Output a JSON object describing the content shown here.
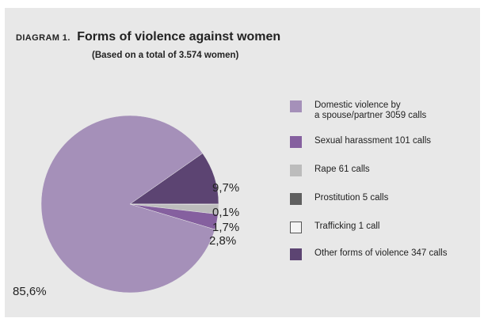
{
  "header": {
    "label": "DIAGRAM 1.",
    "title": "Forms of violence against women",
    "subtitle": "(Based on a total of 3.574 women)"
  },
  "chart_data": {
    "type": "pie",
    "title": "Forms of violence against women",
    "subtitle": "(Based on a total of 3.574 women)",
    "slices": [
      {
        "label": "Domestic violence by\na spouse/partner 3059 calls",
        "value": 85.6,
        "pct_label": "85,6%",
        "color": "#a590b9"
      },
      {
        "label": "Sexual harassment 101 calls",
        "value": 2.8,
        "pct_label": "2,8%",
        "color": "#85609f"
      },
      {
        "label": "Rape 61 calls",
        "value": 1.7,
        "pct_label": "1,7%",
        "color": "#bcbcbc"
      },
      {
        "label": "Prostitution 5 calls",
        "value": 0.1,
        "pct_label": "0,1%",
        "color": "#5f5f5f"
      },
      {
        "label": "Trafficking 1 call",
        "value": 0.03,
        "pct_label": "",
        "color": "#f4f4f4"
      },
      {
        "label": "Other forms of violence 347 calls",
        "value": 9.7,
        "pct_label": "9,7%",
        "color": "#5c4472"
      }
    ],
    "legend_position": "right"
  }
}
